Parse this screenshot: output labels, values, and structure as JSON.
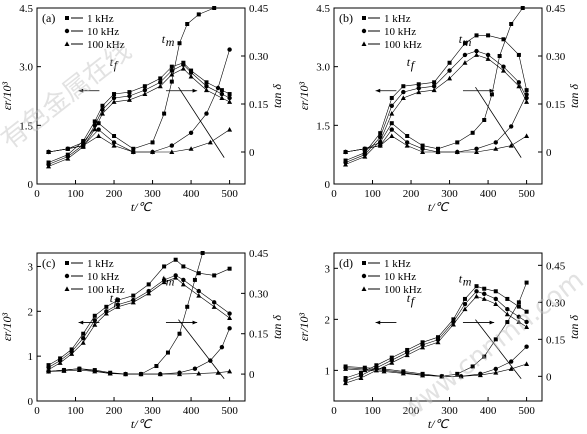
{
  "watermark": {
    "left": "有色金属在线",
    "right": "www.cnnmn.com"
  },
  "chart_data": [
    {
      "panel": "(a)",
      "type": "scatter",
      "xlabel": "t/℃",
      "ylabel": "εr/10³",
      "y2label": "tan δ",
      "xlim": [
        0,
        540
      ],
      "ylim": [
        0,
        4.5
      ],
      "y2lim": [
        -0.1,
        0.45
      ],
      "xticks": [
        0,
        100,
        200,
        300,
        400,
        500
      ],
      "yticks": [
        "0",
        "1.5",
        "3.0",
        "4.5"
      ],
      "ytickvals": [
        0,
        1.5,
        3.0,
        4.5
      ],
      "y2ticks": [
        "0",
        "0.15",
        "0.30",
        "0.45"
      ],
      "y2tickvals": [
        0,
        0.15,
        0.3,
        0.45
      ],
      "legend": [
        "1 kHz",
        "10 kHz",
        "100 kHz"
      ],
      "annotations": {
        "tf": "t",
        "tf_sub": "f",
        "tm": "t",
        "tm_sub": "m"
      },
      "series": [
        {
          "name": "1 kHz",
          "marker": "square",
          "axis": "left",
          "x": [
            30,
            80,
            120,
            150,
            170,
            200,
            240,
            280,
            320,
            350,
            380,
            400,
            440,
            480,
            500
          ],
          "y": [
            0.55,
            0.75,
            1.1,
            1.6,
            2.0,
            2.3,
            2.35,
            2.5,
            2.7,
            3.0,
            3.1,
            2.9,
            2.6,
            2.4,
            2.3
          ]
        },
        {
          "name": "10 kHz",
          "marker": "circle",
          "axis": "left",
          "x": [
            30,
            80,
            120,
            150,
            170,
            200,
            240,
            280,
            320,
            350,
            380,
            400,
            440,
            480,
            500
          ],
          "y": [
            0.5,
            0.7,
            1.0,
            1.5,
            1.9,
            2.2,
            2.25,
            2.4,
            2.6,
            2.9,
            3.05,
            2.85,
            2.5,
            2.3,
            2.2
          ]
        },
        {
          "name": "100 kHz",
          "marker": "triangle",
          "axis": "left",
          "x": [
            30,
            80,
            120,
            150,
            170,
            200,
            240,
            280,
            320,
            350,
            380,
            400,
            440,
            480,
            500
          ],
          "y": [
            0.45,
            0.65,
            0.95,
            1.4,
            1.8,
            2.1,
            2.15,
            2.3,
            2.5,
            2.8,
            2.95,
            2.75,
            2.4,
            2.2,
            2.1
          ]
        },
        {
          "name": "1 kHz",
          "marker": "square",
          "axis": "right",
          "x": [
            30,
            80,
            120,
            160,
            200,
            250,
            300,
            330,
            350,
            370,
            390,
            420,
            460
          ],
          "y": [
            0.0,
            0.01,
            0.03,
            0.09,
            0.05,
            0.01,
            0.03,
            0.12,
            0.22,
            0.34,
            0.4,
            0.43,
            0.45
          ]
        },
        {
          "name": "10 kHz",
          "marker": "circle",
          "axis": "right",
          "x": [
            30,
            80,
            120,
            160,
            200,
            250,
            300,
            350,
            400,
            440,
            470,
            500
          ],
          "y": [
            0.0,
            0.01,
            0.02,
            0.07,
            0.03,
            0.0,
            0.0,
            0.02,
            0.06,
            0.12,
            0.2,
            0.32
          ]
        },
        {
          "name": "100 kHz",
          "marker": "triangle",
          "axis": "right",
          "x": [
            30,
            80,
            120,
            160,
            200,
            250,
            300,
            350,
            400,
            450,
            500
          ],
          "y": [
            0.0,
            0.01,
            0.02,
            0.05,
            0.02,
            0.0,
            0.0,
            0.0,
            0.01,
            0.03,
            0.07
          ]
        }
      ]
    },
    {
      "panel": "(b)",
      "type": "scatter",
      "xlabel": "t/℃",
      "ylabel": "εr/10³",
      "y2label": "tan δ",
      "xlim": [
        0,
        540
      ],
      "ylim": [
        0,
        4.5
      ],
      "y2lim": [
        -0.1,
        0.45
      ],
      "xticks": [
        0,
        100,
        200,
        300,
        400,
        500
      ],
      "yticks": [
        "0",
        "1.5",
        "3.0",
        "4.5"
      ],
      "ytickvals": [
        0,
        1.5,
        3.0,
        4.5
      ],
      "y2ticks": [
        "0",
        "0.15",
        "0.30",
        "0.45"
      ],
      "y2tickvals": [
        0,
        0.15,
        0.3,
        0.45
      ],
      "legend": [
        "1 kHz",
        "10 kHz",
        "100 kHz"
      ],
      "annotations": {
        "tf": "t",
        "tf_sub": "f",
        "tm": "t",
        "tm_sub": "m"
      },
      "series": [
        {
          "name": "1 kHz",
          "marker": "square",
          "axis": "left",
          "x": [
            30,
            80,
            120,
            150,
            180,
            220,
            260,
            300,
            340,
            370,
            400,
            440,
            480,
            500
          ],
          "y": [
            0.6,
            0.8,
            1.3,
            2.2,
            2.5,
            2.55,
            2.6,
            3.1,
            3.6,
            3.8,
            3.8,
            3.7,
            3.3,
            2.4
          ]
        },
        {
          "name": "10 kHz",
          "marker": "circle",
          "axis": "left",
          "x": [
            30,
            80,
            120,
            150,
            180,
            220,
            260,
            300,
            340,
            370,
            400,
            440,
            480,
            500
          ],
          "y": [
            0.55,
            0.75,
            1.2,
            2.0,
            2.35,
            2.45,
            2.5,
            2.9,
            3.3,
            3.4,
            3.3,
            3.0,
            2.6,
            2.2
          ]
        },
        {
          "name": "100 kHz",
          "marker": "triangle",
          "axis": "left",
          "x": [
            30,
            80,
            120,
            150,
            180,
            220,
            260,
            300,
            340,
            370,
            400,
            440,
            480,
            500
          ],
          "y": [
            0.5,
            0.7,
            1.1,
            1.8,
            2.2,
            2.35,
            2.4,
            2.7,
            3.1,
            3.3,
            3.2,
            2.9,
            2.5,
            2.1
          ]
        },
        {
          "name": "1 kHz",
          "marker": "square",
          "axis": "right",
          "x": [
            30,
            80,
            120,
            150,
            190,
            230,
            270,
            320,
            360,
            390,
            410,
            430,
            460,
            490
          ],
          "y": [
            0.0,
            0.01,
            0.03,
            0.09,
            0.05,
            0.02,
            0.01,
            0.03,
            0.06,
            0.1,
            0.18,
            0.3,
            0.4,
            0.45
          ]
        },
        {
          "name": "10 kHz",
          "marker": "circle",
          "axis": "right",
          "x": [
            30,
            80,
            120,
            150,
            190,
            230,
            270,
            320,
            370,
            420,
            460,
            500
          ],
          "y": [
            0.0,
            0.01,
            0.02,
            0.07,
            0.03,
            0.01,
            0.0,
            0.0,
            0.01,
            0.03,
            0.08,
            0.18
          ]
        },
        {
          "name": "100 kHz",
          "marker": "triangle",
          "axis": "right",
          "x": [
            30,
            80,
            120,
            150,
            190,
            230,
            270,
            320,
            370,
            420,
            460,
            500
          ],
          "y": [
            0.0,
            0.01,
            0.02,
            0.05,
            0.02,
            0.0,
            0.0,
            0.0,
            0.0,
            0.01,
            0.02,
            0.05
          ]
        }
      ]
    },
    {
      "panel": "(c)",
      "type": "scatter",
      "xlabel": "t/℃",
      "ylabel": "εr/10³",
      "y2label": "tan δ",
      "xlim": [
        0,
        540
      ],
      "ylim": [
        0,
        3.3
      ],
      "y2lim": [
        -0.1,
        0.45
      ],
      "xticks": [
        0,
        100,
        200,
        300,
        400,
        500
      ],
      "yticks": [
        "0",
        "1",
        "2",
        "3"
      ],
      "ytickvals": [
        0,
        1,
        2,
        3
      ],
      "y2ticks": [
        "0",
        "0.15",
        "0.30",
        "0.45"
      ],
      "y2tickvals": [
        0,
        0.15,
        0.3,
        0.45
      ],
      "legend": [
        "1 kHz",
        "10 kHz",
        "100 kHz"
      ],
      "annotations": {
        "tf": "t",
        "tf_sub": "f",
        "tm": "t",
        "tm_sub": "m"
      },
      "series": [
        {
          "name": "1 kHz",
          "marker": "square",
          "axis": "left",
          "x": [
            30,
            60,
            90,
            120,
            150,
            180,
            210,
            250,
            290,
            330,
            360,
            380,
            420,
            460,
            500
          ],
          "y": [
            0.8,
            0.95,
            1.15,
            1.5,
            1.9,
            2.1,
            2.25,
            2.35,
            2.6,
            3.0,
            3.15,
            3.0,
            2.85,
            2.8,
            2.95
          ]
        },
        {
          "name": "10 kHz",
          "marker": "circle",
          "axis": "left",
          "x": [
            30,
            60,
            90,
            120,
            150,
            180,
            210,
            250,
            290,
            330,
            360,
            380,
            420,
            460,
            500
          ],
          "y": [
            0.75,
            0.9,
            1.1,
            1.4,
            1.8,
            2.0,
            2.15,
            2.25,
            2.45,
            2.7,
            2.8,
            2.7,
            2.45,
            2.2,
            1.95
          ]
        },
        {
          "name": "100 kHz",
          "marker": "triangle",
          "axis": "left",
          "x": [
            30,
            60,
            90,
            120,
            150,
            180,
            210,
            250,
            290,
            330,
            360,
            380,
            420,
            460,
            500
          ],
          "y": [
            0.7,
            0.85,
            1.05,
            1.3,
            1.7,
            1.95,
            2.1,
            2.2,
            2.4,
            2.65,
            2.75,
            2.6,
            2.35,
            2.1,
            1.85
          ]
        },
        {
          "name": "1 kHz",
          "marker": "square",
          "axis": "right",
          "x": [
            30,
            70,
            110,
            150,
            190,
            230,
            270,
            310,
            340,
            370,
            390,
            410,
            430
          ],
          "y": [
            0.01,
            0.015,
            0.02,
            0.015,
            0.005,
            0.0,
            0.0,
            0.03,
            0.08,
            0.15,
            0.25,
            0.35,
            0.45
          ]
        },
        {
          "name": "10 kHz",
          "marker": "circle",
          "axis": "right",
          "x": [
            30,
            70,
            110,
            150,
            190,
            230,
            270,
            320,
            370,
            410,
            450,
            480,
            500
          ],
          "y": [
            0.01,
            0.015,
            0.02,
            0.012,
            0.003,
            0.0,
            0.0,
            0.0,
            0.005,
            0.02,
            0.05,
            0.1,
            0.17
          ]
        },
        {
          "name": "100 kHz",
          "marker": "triangle",
          "axis": "right",
          "x": [
            30,
            70,
            110,
            150,
            190,
            230,
            270,
            320,
            370,
            420,
            470,
            500
          ],
          "y": [
            0.01,
            0.012,
            0.015,
            0.01,
            0.002,
            0.0,
            0.0,
            0.0,
            0.0,
            0.002,
            0.005,
            0.01
          ]
        }
      ]
    },
    {
      "panel": "(d)",
      "type": "scatter",
      "xlabel": "t/℃",
      "ylabel": "εr/10³",
      "y2label": "tan δ",
      "xlim": [
        0,
        540
      ],
      "ylim": [
        0.4,
        3.3
      ],
      "y2lim": [
        -0.1,
        0.5
      ],
      "xticks": [
        0,
        100,
        200,
        300,
        400,
        500
      ],
      "yticks": [
        "1",
        "2",
        "3"
      ],
      "ytickvals": [
        1,
        2,
        3
      ],
      "y2ticks": [
        "0",
        "0.15",
        "0.30",
        "0.45"
      ],
      "y2tickvals": [
        0,
        0.15,
        0.3,
        0.45
      ],
      "legend": [
        "1 kHz",
        "10 kHz",
        "100 kHz"
      ],
      "annotations": {
        "tf": "t",
        "tf_sub": "f",
        "tm": "t",
        "tm_sub": "m"
      },
      "series": [
        {
          "name": "1 kHz",
          "marker": "square",
          "axis": "left",
          "x": [
            30,
            70,
            110,
            150,
            190,
            230,
            270,
            310,
            340,
            370,
            390,
            420,
            450,
            480,
            500
          ],
          "y": [
            0.85,
            0.95,
            1.1,
            1.25,
            1.4,
            1.55,
            1.65,
            2.0,
            2.4,
            2.65,
            2.6,
            2.55,
            2.4,
            2.25,
            2.15
          ]
        },
        {
          "name": "10 kHz",
          "marker": "circle",
          "axis": "left",
          "x": [
            30,
            70,
            110,
            150,
            190,
            230,
            270,
            310,
            340,
            370,
            390,
            420,
            450,
            480,
            500
          ],
          "y": [
            0.8,
            0.9,
            1.05,
            1.2,
            1.35,
            1.5,
            1.6,
            1.95,
            2.3,
            2.55,
            2.5,
            2.4,
            2.2,
            2.05,
            1.95
          ]
        },
        {
          "name": "100 kHz",
          "marker": "triangle",
          "axis": "left",
          "x": [
            30,
            70,
            110,
            150,
            190,
            230,
            270,
            310,
            340,
            370,
            390,
            420,
            450,
            480,
            500
          ],
          "y": [
            0.75,
            0.85,
            1.0,
            1.15,
            1.3,
            1.45,
            1.55,
            1.9,
            2.2,
            2.45,
            2.4,
            2.3,
            2.1,
            1.95,
            1.85
          ]
        },
        {
          "name": "1 kHz",
          "marker": "square",
          "axis": "right",
          "x": [
            30,
            80,
            130,
            180,
            230,
            280,
            320,
            360,
            390,
            420,
            450,
            480,
            500
          ],
          "y": [
            0.04,
            0.035,
            0.03,
            0.02,
            0.01,
            0.0,
            0.01,
            0.04,
            0.08,
            0.15,
            0.22,
            0.3,
            0.38
          ]
        },
        {
          "name": "10 kHz",
          "marker": "circle",
          "axis": "right",
          "x": [
            30,
            80,
            130,
            180,
            230,
            280,
            330,
            380,
            420,
            460,
            500
          ],
          "y": [
            0.035,
            0.03,
            0.025,
            0.015,
            0.005,
            0.0,
            0.0,
            0.01,
            0.03,
            0.06,
            0.12
          ]
        },
        {
          "name": "100 kHz",
          "marker": "triangle",
          "axis": "right",
          "x": [
            30,
            80,
            130,
            180,
            230,
            280,
            330,
            380,
            420,
            460,
            500
          ],
          "y": [
            0.03,
            0.025,
            0.02,
            0.012,
            0.004,
            0.0,
            0.0,
            0.005,
            0.015,
            0.03,
            0.05
          ]
        }
      ]
    }
  ]
}
